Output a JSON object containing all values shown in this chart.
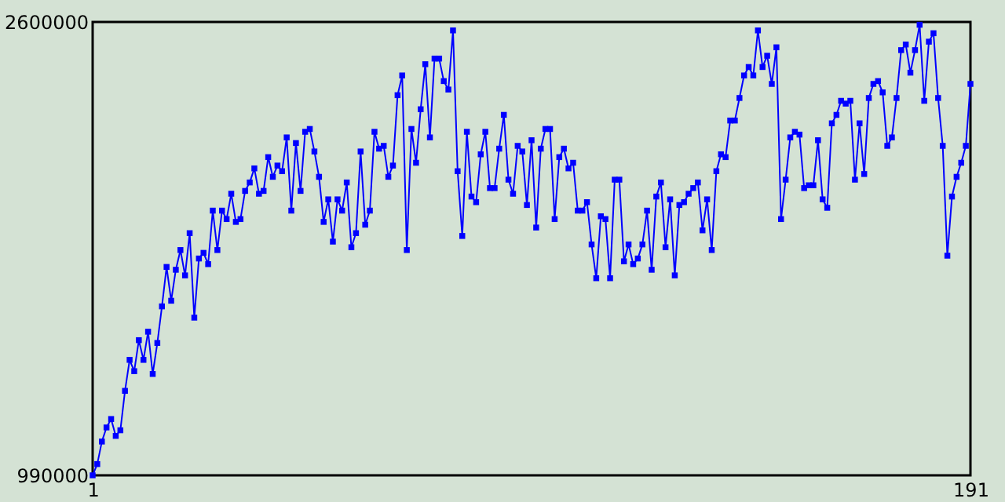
{
  "chart_data": {
    "type": "line",
    "x": [
      1,
      2,
      3,
      4,
      5,
      6,
      7,
      8,
      9,
      10,
      11,
      12,
      13,
      14,
      15,
      16,
      17,
      18,
      19,
      20,
      21,
      22,
      23,
      24,
      25,
      26,
      27,
      28,
      29,
      30,
      31,
      32,
      33,
      34,
      35,
      36,
      37,
      38,
      39,
      40,
      41,
      42,
      43,
      44,
      45,
      46,
      47,
      48,
      49,
      50,
      51,
      52,
      53,
      54,
      55,
      56,
      57,
      58,
      59,
      60,
      61,
      62,
      63,
      64,
      65,
      66,
      67,
      68,
      69,
      70,
      71,
      72,
      73,
      74,
      75,
      76,
      77,
      78,
      79,
      80,
      81,
      82,
      83,
      84,
      85,
      86,
      87,
      88,
      89,
      90,
      91,
      92,
      93,
      94,
      95,
      96,
      97,
      98,
      99,
      100,
      101,
      102,
      103,
      104,
      105,
      106,
      107,
      108,
      109,
      110,
      111,
      112,
      113,
      114,
      115,
      116,
      117,
      118,
      119,
      120,
      121,
      122,
      123,
      124,
      125,
      126,
      127,
      128,
      129,
      130,
      131,
      132,
      133,
      134,
      135,
      136,
      137,
      138,
      139,
      140,
      141,
      142,
      143,
      144,
      145,
      146,
      147,
      148,
      149,
      150,
      151,
      152,
      153,
      154,
      155,
      156,
      157,
      158,
      159,
      160,
      161,
      162,
      163,
      164,
      165,
      166,
      167,
      168,
      169,
      170,
      171,
      172,
      173,
      174,
      175,
      176,
      177,
      178,
      179,
      180,
      181,
      182,
      183,
      184,
      185,
      186,
      187,
      188,
      189,
      190,
      191
    ],
    "series": [
      {
        "color": "#0000ff",
        "values": [
          990000,
          1030000,
          1110000,
          1160000,
          1190000,
          1130000,
          1150000,
          1290000,
          1400000,
          1360000,
          1470000,
          1400000,
          1500000,
          1350000,
          1460000,
          1590000,
          1730000,
          1610000,
          1720000,
          1790000,
          1700000,
          1850000,
          1550000,
          1760000,
          1780000,
          1740000,
          1930000,
          1790000,
          1930000,
          1900000,
          1990000,
          1890000,
          1900000,
          2000000,
          2030000,
          2080000,
          1990000,
          2000000,
          2120000,
          2050000,
          2090000,
          2070000,
          2190000,
          1930000,
          2170000,
          2000000,
          2210000,
          2220000,
          2140000,
          2050000,
          1890000,
          1970000,
          1820000,
          1970000,
          1930000,
          2030000,
          1800000,
          1850000,
          2140000,
          1880000,
          1930000,
          2210000,
          2150000,
          2160000,
          2050000,
          2090000,
          2340000,
          2410000,
          1790000,
          2220000,
          2100000,
          2290000,
          2450000,
          2190000,
          2470000,
          2470000,
          2390000,
          2360000,
          2570000,
          2070000,
          1840000,
          2210000,
          1980000,
          1960000,
          2130000,
          2210000,
          2010000,
          2010000,
          2150000,
          2270000,
          2040000,
          1990000,
          2160000,
          2140000,
          1950000,
          2180000,
          1870000,
          2150000,
          2220000,
          2220000,
          1900000,
          2120000,
          2150000,
          2080000,
          2100000,
          1930000,
          1930000,
          1960000,
          1810000,
          1690000,
          1910000,
          1900000,
          1690000,
          2040000,
          2040000,
          1750000,
          1810000,
          1740000,
          1760000,
          1810000,
          1930000,
          1720000,
          1980000,
          2030000,
          1800000,
          1970000,
          1700000,
          1950000,
          1960000,
          1990000,
          2010000,
          2030000,
          1860000,
          1970000,
          1790000,
          2070000,
          2130000,
          2120000,
          2250000,
          2250000,
          2330000,
          2410000,
          2440000,
          2410000,
          2570000,
          2440000,
          2480000,
          2380000,
          2510000,
          1900000,
          2040000,
          2190000,
          2210000,
          2200000,
          2010000,
          2020000,
          2020000,
          2180000,
          1970000,
          1940000,
          2240000,
          2270000,
          2320000,
          2310000,
          2320000,
          2040000,
          2240000,
          2060000,
          2330000,
          2380000,
          2390000,
          2350000,
          2160000,
          2190000,
          2330000,
          2500000,
          2520000,
          2420000,
          2500000,
          2590000,
          2320000,
          2530000,
          2560000,
          2330000,
          2160000,
          1770000,
          1980000,
          2050000,
          2100000,
          2160000,
          2380000
        ]
      }
    ],
    "xlim": [
      1,
      191
    ],
    "xticks": [
      1,
      191
    ],
    "ylim": [
      990000,
      2600000
    ],
    "yticks": [
      990000,
      2600000
    ],
    "marker": "square",
    "line_style": "solid",
    "grid": false,
    "legend": false
  }
}
